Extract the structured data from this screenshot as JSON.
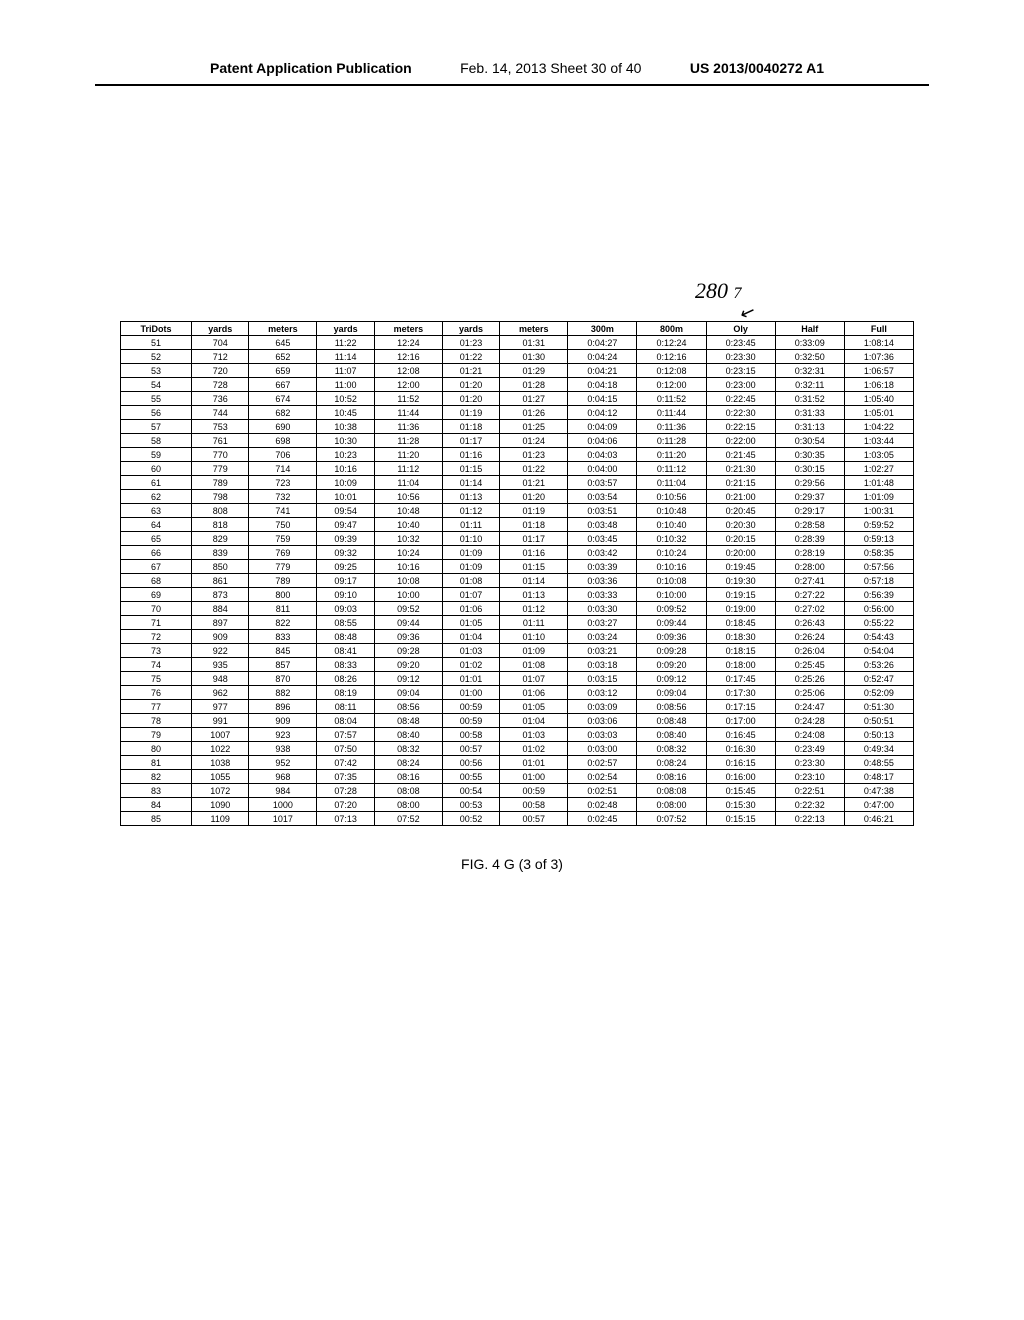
{
  "header": {
    "left": "Patent Application Publication",
    "center": "Feb. 14, 2013  Sheet 30 of 40",
    "right": "US 2013/0040272 A1"
  },
  "annotation_label": "280",
  "annotation_sub": "7",
  "caption": "FIG. 4 G (3 of 3)",
  "table": {
    "columns": [
      "TriDots",
      "yards",
      "meters",
      "yards",
      "meters",
      "yards",
      "meters",
      "300m",
      "800m",
      "Oly",
      "Half",
      "Full"
    ],
    "rows": [
      [
        "51",
        "704",
        "645",
        "11:22",
        "12:24",
        "01:23",
        "01:31",
        "0:04:27",
        "0:12:24",
        "0:23:45",
        "0:33:09",
        "1:08:14"
      ],
      [
        "52",
        "712",
        "652",
        "11:14",
        "12:16",
        "01:22",
        "01:30",
        "0:04:24",
        "0:12:16",
        "0:23:30",
        "0:32:50",
        "1:07:36"
      ],
      [
        "53",
        "720",
        "659",
        "11:07",
        "12:08",
        "01:21",
        "01:29",
        "0:04:21",
        "0:12:08",
        "0:23:15",
        "0:32:31",
        "1:06:57"
      ],
      [
        "54",
        "728",
        "667",
        "11:00",
        "12:00",
        "01:20",
        "01:28",
        "0:04:18",
        "0:12:00",
        "0:23:00",
        "0:32:11",
        "1:06:18"
      ],
      [
        "55",
        "736",
        "674",
        "10:52",
        "11:52",
        "01:20",
        "01:27",
        "0:04:15",
        "0:11:52",
        "0:22:45",
        "0:31:52",
        "1:05:40"
      ],
      [
        "56",
        "744",
        "682",
        "10:45",
        "11:44",
        "01:19",
        "01:26",
        "0:04:12",
        "0:11:44",
        "0:22:30",
        "0:31:33",
        "1:05:01"
      ],
      [
        "57",
        "753",
        "690",
        "10:38",
        "11:36",
        "01:18",
        "01:25",
        "0:04:09",
        "0:11:36",
        "0:22:15",
        "0:31:13",
        "1:04:22"
      ],
      [
        "58",
        "761",
        "698",
        "10:30",
        "11:28",
        "01:17",
        "01:24",
        "0:04:06",
        "0:11:28",
        "0:22:00",
        "0:30:54",
        "1:03:44"
      ],
      [
        "59",
        "770",
        "706",
        "10:23",
        "11:20",
        "01:16",
        "01:23",
        "0:04:03",
        "0:11:20",
        "0:21:45",
        "0:30:35",
        "1:03:05"
      ],
      [
        "60",
        "779",
        "714",
        "10:16",
        "11:12",
        "01:15",
        "01:22",
        "0:04:00",
        "0:11:12",
        "0:21:30",
        "0:30:15",
        "1:02:27"
      ],
      [
        "61",
        "789",
        "723",
        "10:09",
        "11:04",
        "01:14",
        "01:21",
        "0:03:57",
        "0:11:04",
        "0:21:15",
        "0:29:56",
        "1:01:48"
      ],
      [
        "62",
        "798",
        "732",
        "10:01",
        "10:56",
        "01:13",
        "01:20",
        "0:03:54",
        "0:10:56",
        "0:21:00",
        "0:29:37",
        "1:01:09"
      ],
      [
        "63",
        "808",
        "741",
        "09:54",
        "10:48",
        "01:12",
        "01:19",
        "0:03:51",
        "0:10:48",
        "0:20:45",
        "0:29:17",
        "1:00:31"
      ],
      [
        "64",
        "818",
        "750",
        "09:47",
        "10:40",
        "01:11",
        "01:18",
        "0:03:48",
        "0:10:40",
        "0:20:30",
        "0:28:58",
        "0:59:52"
      ],
      [
        "65",
        "829",
        "759",
        "09:39",
        "10:32",
        "01:10",
        "01:17",
        "0:03:45",
        "0:10:32",
        "0:20:15",
        "0:28:39",
        "0:59:13"
      ],
      [
        "66",
        "839",
        "769",
        "09:32",
        "10:24",
        "01:09",
        "01:16",
        "0:03:42",
        "0:10:24",
        "0:20:00",
        "0:28:19",
        "0:58:35"
      ],
      [
        "67",
        "850",
        "779",
        "09:25",
        "10:16",
        "01:09",
        "01:15",
        "0:03:39",
        "0:10:16",
        "0:19:45",
        "0:28:00",
        "0:57:56"
      ],
      [
        "68",
        "861",
        "789",
        "09:17",
        "10:08",
        "01:08",
        "01:14",
        "0:03:36",
        "0:10:08",
        "0:19:30",
        "0:27:41",
        "0:57:18"
      ],
      [
        "69",
        "873",
        "800",
        "09:10",
        "10:00",
        "01:07",
        "01:13",
        "0:03:33",
        "0:10:00",
        "0:19:15",
        "0:27:22",
        "0:56:39"
      ],
      [
        "70",
        "884",
        "811",
        "09:03",
        "09:52",
        "01:06",
        "01:12",
        "0:03:30",
        "0:09:52",
        "0:19:00",
        "0:27:02",
        "0:56:00"
      ],
      [
        "71",
        "897",
        "822",
        "08:55",
        "09:44",
        "01:05",
        "01:11",
        "0:03:27",
        "0:09:44",
        "0:18:45",
        "0:26:43",
        "0:55:22"
      ],
      [
        "72",
        "909",
        "833",
        "08:48",
        "09:36",
        "01:04",
        "01:10",
        "0:03:24",
        "0:09:36",
        "0:18:30",
        "0:26:24",
        "0:54:43"
      ],
      [
        "73",
        "922",
        "845",
        "08:41",
        "09:28",
        "01:03",
        "01:09",
        "0:03:21",
        "0:09:28",
        "0:18:15",
        "0:26:04",
        "0:54:04"
      ],
      [
        "74",
        "935",
        "857",
        "08:33",
        "09:20",
        "01:02",
        "01:08",
        "0:03:18",
        "0:09:20",
        "0:18:00",
        "0:25:45",
        "0:53:26"
      ],
      [
        "75",
        "948",
        "870",
        "08:26",
        "09:12",
        "01:01",
        "01:07",
        "0:03:15",
        "0:09:12",
        "0:17:45",
        "0:25:26",
        "0:52:47"
      ],
      [
        "76",
        "962",
        "882",
        "08:19",
        "09:04",
        "01:00",
        "01:06",
        "0:03:12",
        "0:09:04",
        "0:17:30",
        "0:25:06",
        "0:52:09"
      ],
      [
        "77",
        "977",
        "896",
        "08:11",
        "08:56",
        "00:59",
        "01:05",
        "0:03:09",
        "0:08:56",
        "0:17:15",
        "0:24:47",
        "0:51:30"
      ],
      [
        "78",
        "991",
        "909",
        "08:04",
        "08:48",
        "00:59",
        "01:04",
        "0:03:06",
        "0:08:48",
        "0:17:00",
        "0:24:28",
        "0:50:51"
      ],
      [
        "79",
        "1007",
        "923",
        "07:57",
        "08:40",
        "00:58",
        "01:03",
        "0:03:03",
        "0:08:40",
        "0:16:45",
        "0:24:08",
        "0:50:13"
      ],
      [
        "80",
        "1022",
        "938",
        "07:50",
        "08:32",
        "00:57",
        "01:02",
        "0:03:00",
        "0:08:32",
        "0:16:30",
        "0:23:49",
        "0:49:34"
      ],
      [
        "81",
        "1038",
        "952",
        "07:42",
        "08:24",
        "00:56",
        "01:01",
        "0:02:57",
        "0:08:24",
        "0:16:15",
        "0:23:30",
        "0:48:55"
      ],
      [
        "82",
        "1055",
        "968",
        "07:35",
        "08:16",
        "00:55",
        "01:00",
        "0:02:54",
        "0:08:16",
        "0:16:00",
        "0:23:10",
        "0:48:17"
      ],
      [
        "83",
        "1072",
        "984",
        "07:28",
        "08:08",
        "00:54",
        "00:59",
        "0:02:51",
        "0:08:08",
        "0:15:45",
        "0:22:51",
        "0:47:38"
      ],
      [
        "84",
        "1090",
        "1000",
        "07:20",
        "08:00",
        "00:53",
        "00:58",
        "0:02:48",
        "0:08:00",
        "0:15:30",
        "0:22:32",
        "0:47:00"
      ],
      [
        "85",
        "1109",
        "1017",
        "07:13",
        "07:52",
        "00:52",
        "00:57",
        "0:02:45",
        "0:07:52",
        "0:15:15",
        "0:22:13",
        "0:46:21"
      ]
    ]
  }
}
